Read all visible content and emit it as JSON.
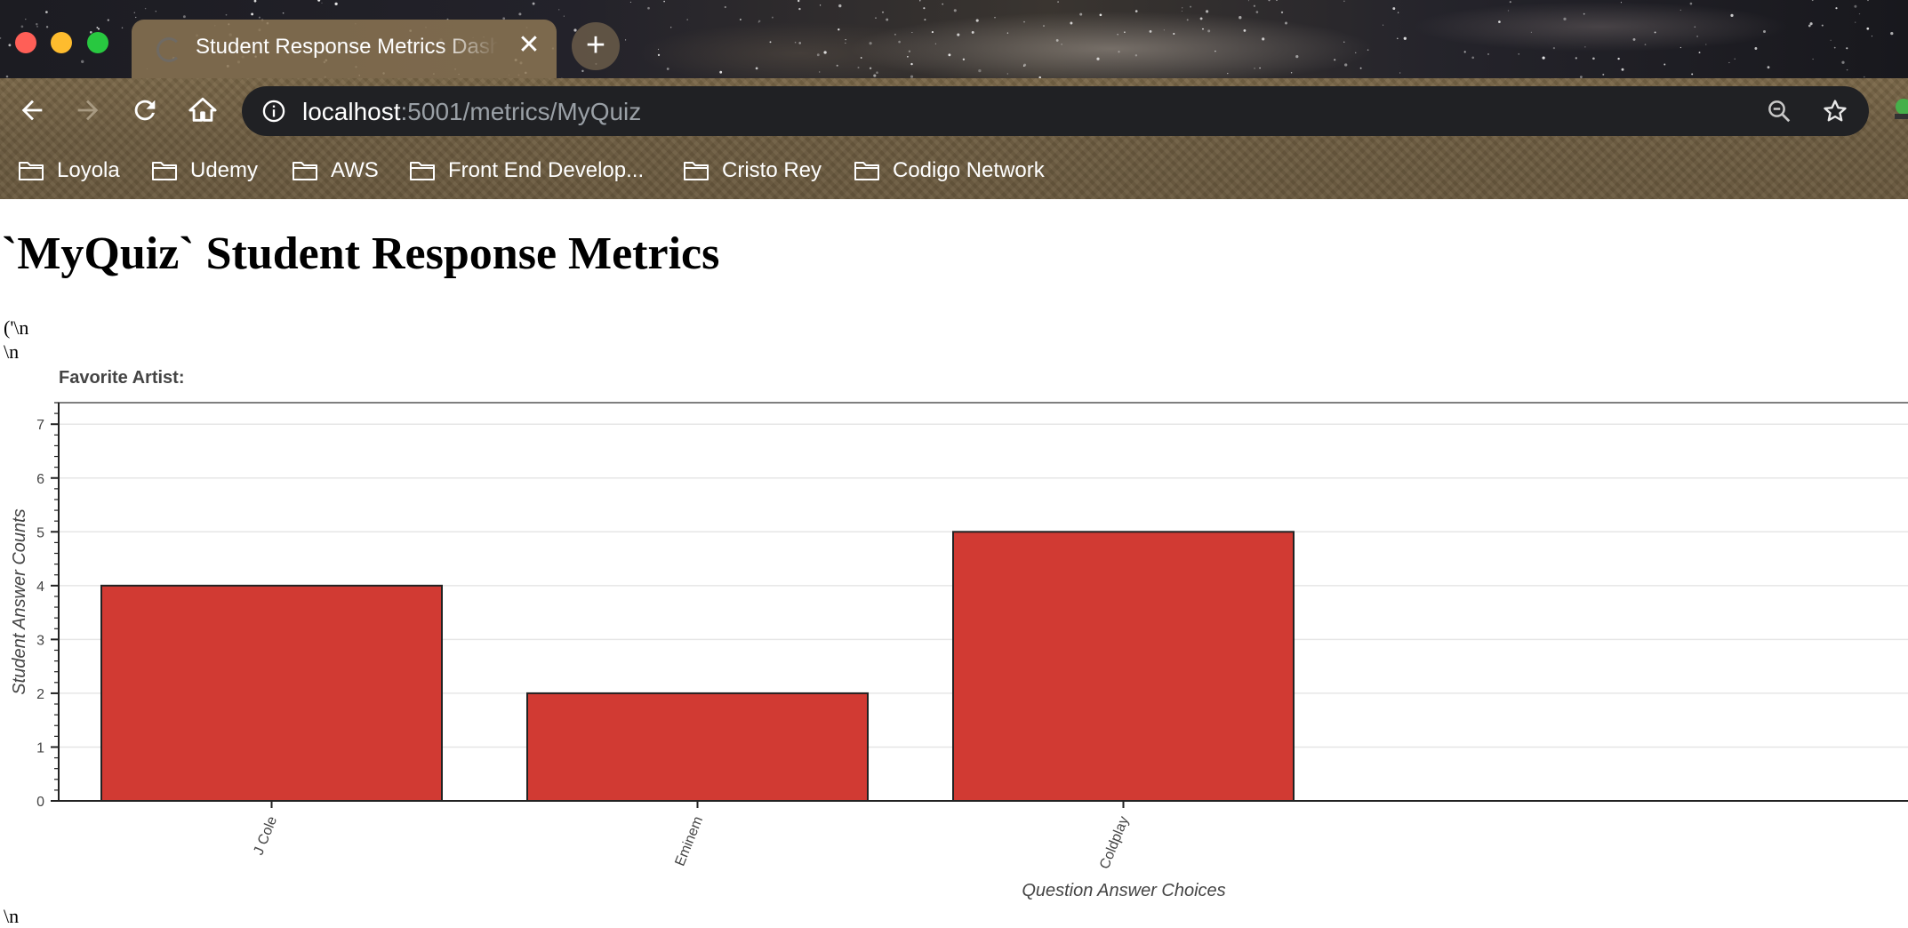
{
  "browser": {
    "tab": {
      "title": "Student Response Metrics Dashboard",
      "close_glyph": "✕"
    },
    "new_tab_glyph": "+",
    "url": {
      "host": "localhost",
      "path": ":5001/metrics/MyQuiz"
    },
    "bookmarks": [
      "Loyola",
      "Udemy",
      "AWS",
      "Front End Develop...",
      "Cristo Rey",
      "Codigo Network"
    ],
    "icons": {
      "back": "arrow-left-icon",
      "forward": "arrow-right-icon",
      "reload": "reload-icon",
      "home": "home-icon",
      "info": "info-icon",
      "zoom": "zoom-out-icon",
      "star": "star-icon",
      "bookmark_folder": "folder-icon"
    }
  },
  "page": {
    "title": "`MyQuiz` Student Response Metrics",
    "raw_lines": [
      "('\\n",
      "\\n",
      "\\n"
    ]
  },
  "chart_data": {
    "type": "bar",
    "title": "Favorite Artist:",
    "categories": [
      "J Cole",
      "Eminem",
      "Coldplay"
    ],
    "values": [
      4,
      2,
      5
    ],
    "xlabel": "Question Answer Choices",
    "ylabel": "Student Answer Counts",
    "ylim": [
      0,
      7.4
    ],
    "yticks": [
      0,
      1,
      2,
      3,
      4,
      5,
      6,
      7
    ],
    "grid": "horizontal",
    "bar_color": "#d13a33",
    "bar_border": "#222222"
  }
}
